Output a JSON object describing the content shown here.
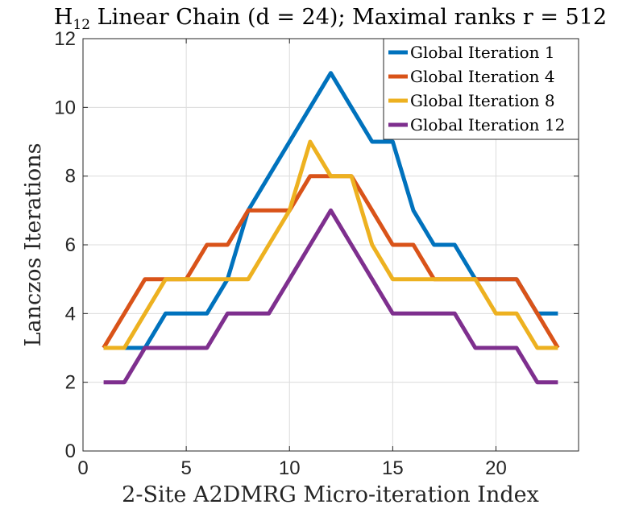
{
  "chart_data": {
    "type": "line",
    "title_main": "H",
    "title_sub": "12",
    "title_rest": " Linear Chain (d = 24); Maximal ranks r = 512",
    "xlabel": "2-Site A2DMRG Micro-iteration Index",
    "ylabel": "Lanczos Iterations",
    "xlim": [
      0,
      24
    ],
    "ylim": [
      0,
      12
    ],
    "xticks": [
      0,
      5,
      10,
      15,
      20
    ],
    "yticks": [
      0,
      2,
      4,
      6,
      8,
      10,
      12
    ],
    "grid": true,
    "legend_position": "top-right",
    "x": [
      1,
      2,
      3,
      4,
      5,
      6,
      7,
      8,
      9,
      10,
      11,
      12,
      13,
      14,
      15,
      16,
      17,
      18,
      19,
      20,
      21,
      22,
      23
    ],
    "series": [
      {
        "name": "Global Iteration 1",
        "color": "#0072BD",
        "values": [
          3,
          3,
          3,
          4,
          4,
          4,
          5,
          7,
          8,
          9,
          10,
          11,
          10,
          9,
          9,
          7,
          6,
          6,
          5,
          5,
          5,
          4,
          4
        ]
      },
      {
        "name": "Global Iteration 4",
        "color": "#D95319",
        "values": [
          3,
          4,
          5,
          5,
          5,
          6,
          6,
          7,
          7,
          7,
          8,
          8,
          8,
          7,
          6,
          6,
          5,
          5,
          5,
          5,
          5,
          4,
          3
        ]
      },
      {
        "name": "Global Iteration 8",
        "color": "#EDB120",
        "values": [
          3,
          3,
          4,
          5,
          5,
          5,
          5,
          5,
          6,
          7,
          9,
          8,
          8,
          6,
          5,
          5,
          5,
          5,
          5,
          4,
          4,
          3,
          3
        ]
      },
      {
        "name": "Global Iteration 12",
        "color": "#7E2F8E",
        "values": [
          2,
          2,
          3,
          3,
          3,
          3,
          4,
          4,
          4,
          5,
          6,
          7,
          6,
          5,
          4,
          4,
          4,
          4,
          3,
          3,
          3,
          2,
          2
        ]
      }
    ]
  }
}
